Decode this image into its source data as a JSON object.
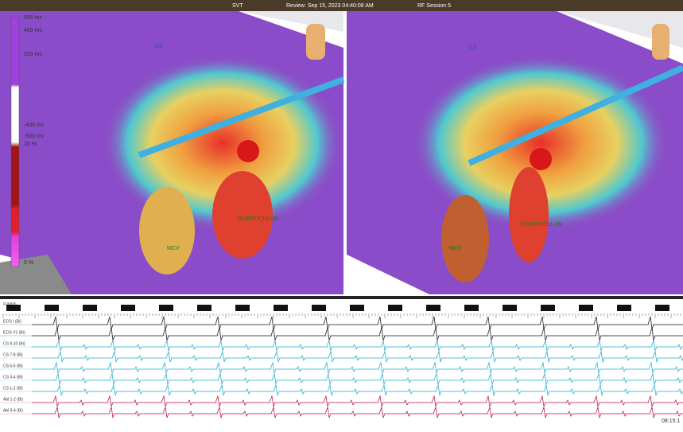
{
  "header": {
    "mode": "SVT",
    "review": "Review: Sep 15, 2023 04:40:08 AM",
    "session": "RF Session 5"
  },
  "scale": {
    "labels": [
      "500 ms",
      "400 ms",
      "200 ms",
      "-400 ms",
      "-500 ms",
      "20 %",
      "0 %"
    ]
  },
  "left_map": {
    "labels": [
      "CS",
      "MCV",
      "DIVERTICULUM"
    ]
  },
  "right_map": {
    "labels": [
      "CS",
      "MCV",
      "DIVERTICULUM"
    ]
  },
  "signals": {
    "speed": "d-mm/s",
    "channels": [
      "ECG I (Bi)",
      "ECG V1 (Bi)",
      "CS 9-10 (Bi)",
      "CS 7-8 (Bi)",
      "CS 5-6 (Bi)",
      "CS 3-4 (Bi)",
      "CS 1-2 (Bi)",
      "Abl 1-2 (Bi)",
      "Abl 3-4 (Bi)"
    ],
    "clock": "08:15:1"
  }
}
